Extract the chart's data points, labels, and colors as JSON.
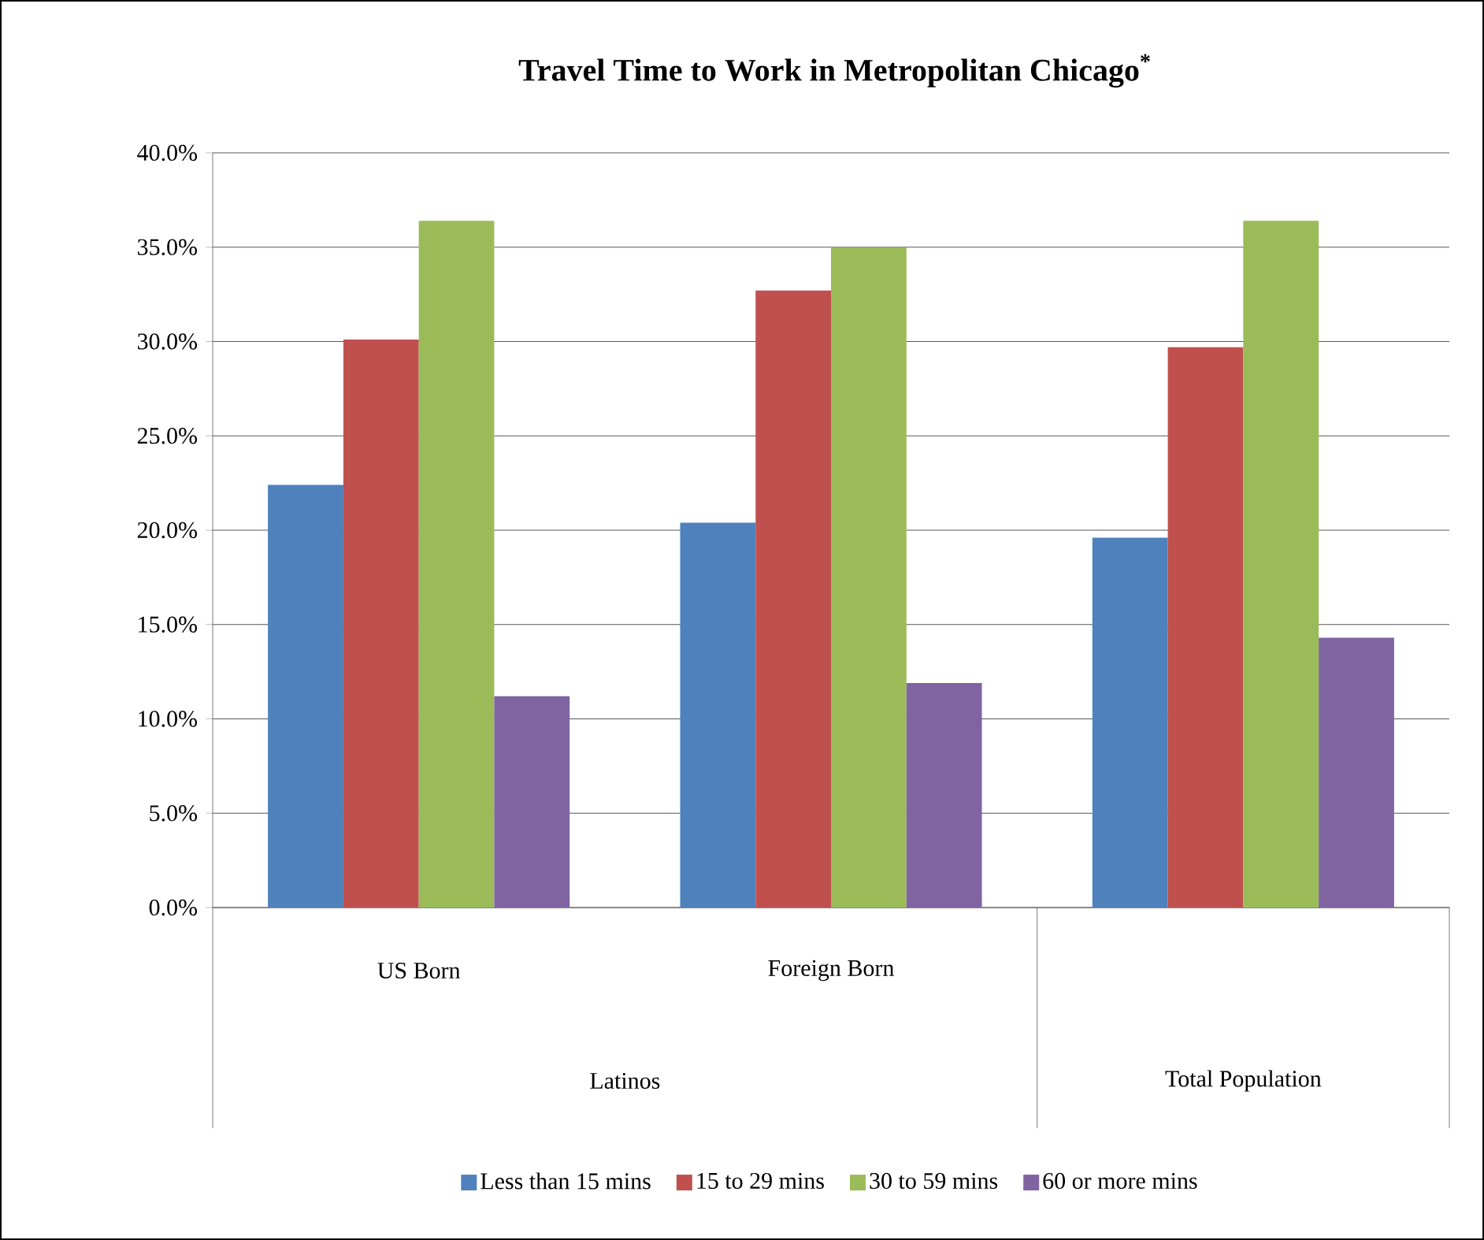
{
  "chart_data": {
    "type": "bar",
    "title": "Travel Time to Work in Metropolitan Chicago$^{*}$",
    "categories": [
      "US Born",
      "Foreign Born",
      null
    ],
    "annotations": [
      "Latinos",
      "Total Population"
    ],
    "series": [
      {
        "name": "Less than 15 mins",
        "color": "#4f81bd",
        "values": [
          22.4,
          20.4,
          19.6
        ]
      },
      {
        "name": "15 to 29 mins",
        "color": "#c0504d",
        "values": [
          30.1,
          32.7,
          29.7
        ]
      },
      {
        "name": "30 to 59 mins",
        "color": "#9bbb59",
        "values": [
          36.4,
          35.0,
          36.4
        ]
      },
      {
        "name": "60 or more mins",
        "color": "#8064a2",
        "values": [
          11.2,
          11.9,
          14.3
        ]
      }
    ],
    "ylim": [
      0,
      40
    ],
    "yticks": [
      {
        "value": 0,
        "label": "0.0%"
      },
      {
        "value": 5,
        "label": "5.0%"
      },
      {
        "value": 10,
        "label": "10.0%"
      },
      {
        "value": 15,
        "label": "15.0%"
      },
      {
        "value": 20,
        "label": "20.0%"
      },
      {
        "value": 25,
        "label": "25.0%"
      },
      {
        "value": 30,
        "label": "30.0%"
      },
      {
        "value": 35,
        "label": "35.0%"
      },
      {
        "value": 40,
        "label": "40.0%"
      }
    ],
    "grid": "y",
    "legend": "bottom"
  }
}
